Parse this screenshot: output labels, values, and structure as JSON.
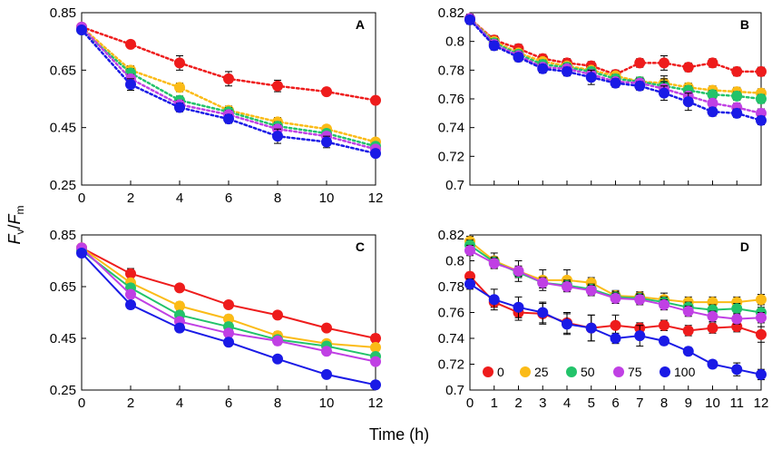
{
  "figure": {
    "ylabel_main": "F",
    "ylabel_sub1": "v",
    "ylabel_slash": "/",
    "ylabel_main2": "F",
    "ylabel_sub2": "m",
    "xlabel": "Time (h)"
  },
  "colors": {
    "0": "#ee1c1c",
    "25": "#fbbb17",
    "50": "#22c36a",
    "75": "#c040e4",
    "100": "#1a1ae6"
  },
  "legend": {
    "placement": "bottom-left of panel D",
    "items": [
      {
        "label": "0",
        "color": "#ee1c1c"
      },
      {
        "label": "25",
        "color": "#fbbb17"
      },
      {
        "label": "50",
        "color": "#22c36a"
      },
      {
        "label": "75",
        "color": "#c040e4"
      },
      {
        "label": "100",
        "color": "#1a1ae6"
      }
    ]
  },
  "chart_data": [
    {
      "panel": "A",
      "type": "line",
      "line_style": "dotted",
      "x": [
        0,
        2,
        4,
        6,
        8,
        10,
        12
      ],
      "xlim": [
        0,
        12
      ],
      "xticks": [
        "0",
        "2",
        "4",
        "6",
        "8",
        "10",
        "12"
      ],
      "ylim": [
        0.25,
        0.85
      ],
      "yticks": [
        "0.85",
        "0.65",
        "0.45",
        "0.25"
      ],
      "ytick_values": [
        0.85,
        0.65,
        0.45,
        0.25
      ],
      "series": [
        {
          "name": "0",
          "values": [
            0.8,
            0.74,
            0.675,
            0.62,
            0.595,
            0.575,
            0.545
          ],
          "err": [
            0.01,
            0.012,
            0.025,
            0.025,
            0.02,
            0.01,
            0.01
          ]
        },
        {
          "name": "25",
          "values": [
            0.8,
            0.65,
            0.59,
            0.51,
            0.47,
            0.445,
            0.4
          ],
          "err": [
            0.01,
            0.015,
            0.015,
            0.015,
            0.015,
            0.012,
            0.01
          ]
        },
        {
          "name": "50",
          "values": [
            0.79,
            0.64,
            0.545,
            0.505,
            0.455,
            0.43,
            0.385
          ],
          "err": [
            0.01,
            0.015,
            0.015,
            0.015,
            0.015,
            0.012,
            0.01
          ]
        },
        {
          "name": "75",
          "values": [
            0.8,
            0.62,
            0.53,
            0.495,
            0.445,
            0.42,
            0.375
          ],
          "err": [
            0.01,
            0.015,
            0.015,
            0.015,
            0.015,
            0.012,
            0.01
          ]
        },
        {
          "name": "100",
          "values": [
            0.79,
            0.6,
            0.52,
            0.48,
            0.42,
            0.4,
            0.36
          ],
          "err": [
            0.01,
            0.02,
            0.015,
            0.015,
            0.025,
            0.02,
            0.012
          ]
        }
      ]
    },
    {
      "panel": "B",
      "type": "line",
      "line_style": "dotted",
      "x": [
        0,
        1,
        2,
        3,
        4,
        5,
        6,
        7,
        8,
        9,
        10,
        11,
        12
      ],
      "xlim": [
        0,
        12
      ],
      "xticks": [],
      "ylim": [
        0.7,
        0.82
      ],
      "yticks": [
        "0.82",
        "0.8",
        "0.78",
        "0.76",
        "0.74",
        "0.72",
        "0.7"
      ],
      "ytick_values": [
        0.82,
        0.8,
        0.78,
        0.76,
        0.74,
        0.72,
        0.7
      ],
      "series": [
        {
          "name": "0",
          "values": [
            0.816,
            0.801,
            0.795,
            0.788,
            0.785,
            0.783,
            0.777,
            0.785,
            0.785,
            0.782,
            0.785,
            0.779,
            0.779
          ],
          "err": [
            0.003,
            0.003,
            0.003,
            0.003,
            0.003,
            0.003,
            0.003,
            0.003,
            0.005,
            0.003,
            0.003,
            0.003,
            0.003
          ]
        },
        {
          "name": "25",
          "values": [
            0.816,
            0.8,
            0.792,
            0.786,
            0.783,
            0.78,
            0.776,
            0.772,
            0.771,
            0.768,
            0.766,
            0.765,
            0.764
          ],
          "err": [
            0.003,
            0.003,
            0.003,
            0.003,
            0.003,
            0.003,
            0.003,
            0.003,
            0.005,
            0.003,
            0.003,
            0.003,
            0.003
          ]
        },
        {
          "name": "50",
          "values": [
            0.816,
            0.799,
            0.791,
            0.784,
            0.782,
            0.779,
            0.774,
            0.772,
            0.769,
            0.766,
            0.763,
            0.762,
            0.76
          ],
          "err": [
            0.003,
            0.003,
            0.003,
            0.003,
            0.003,
            0.003,
            0.003,
            0.003,
            0.005,
            0.003,
            0.003,
            0.003,
            0.003
          ]
        },
        {
          "name": "75",
          "values": [
            0.816,
            0.798,
            0.79,
            0.782,
            0.781,
            0.777,
            0.772,
            0.771,
            0.767,
            0.762,
            0.757,
            0.754,
            0.75
          ],
          "err": [
            0.003,
            0.003,
            0.003,
            0.003,
            0.003,
            0.003,
            0.003,
            0.003,
            0.005,
            0.003,
            0.003,
            0.003,
            0.003
          ]
        },
        {
          "name": "100",
          "values": [
            0.815,
            0.797,
            0.789,
            0.781,
            0.779,
            0.775,
            0.771,
            0.769,
            0.764,
            0.758,
            0.751,
            0.75,
            0.745
          ],
          "err": [
            0.003,
            0.003,
            0.003,
            0.003,
            0.003,
            0.005,
            0.003,
            0.003,
            0.005,
            0.006,
            0.003,
            0.003,
            0.003
          ]
        }
      ]
    },
    {
      "panel": "C",
      "type": "line",
      "line_style": "solid",
      "x": [
        0,
        2,
        4,
        6,
        8,
        10,
        12
      ],
      "xlim": [
        0,
        12
      ],
      "xticks": [
        "0",
        "2",
        "4",
        "6",
        "8",
        "10",
        "12"
      ],
      "ylim": [
        0.25,
        0.85
      ],
      "yticks": [
        "0.85",
        "0.65",
        "0.45",
        "0.25"
      ],
      "ytick_values": [
        0.85,
        0.65,
        0.45,
        0.25
      ],
      "series": [
        {
          "name": "0",
          "values": [
            0.8,
            0.7,
            0.645,
            0.58,
            0.54,
            0.49,
            0.45
          ],
          "err": [
            0.01,
            0.02,
            0.01,
            0.01,
            0.01,
            0.01,
            0.015
          ]
        },
        {
          "name": "25",
          "values": [
            0.8,
            0.665,
            0.575,
            0.525,
            0.46,
            0.43,
            0.415
          ],
          "err": [
            0.01,
            0.015,
            0.015,
            0.015,
            0.015,
            0.012,
            0.01
          ]
        },
        {
          "name": "50",
          "values": [
            0.79,
            0.645,
            0.54,
            0.495,
            0.445,
            0.42,
            0.38
          ],
          "err": [
            0.01,
            0.015,
            0.015,
            0.015,
            0.015,
            0.012,
            0.01
          ]
        },
        {
          "name": "75",
          "values": [
            0.8,
            0.62,
            0.515,
            0.47,
            0.44,
            0.4,
            0.36
          ],
          "err": [
            0.01,
            0.015,
            0.015,
            0.015,
            0.015,
            0.012,
            0.01
          ]
        },
        {
          "name": "100",
          "values": [
            0.78,
            0.58,
            0.49,
            0.435,
            0.37,
            0.31,
            0.27
          ],
          "err": [
            0.01,
            0.015,
            0.015,
            0.015,
            0.01,
            0.01,
            0.01
          ]
        }
      ]
    },
    {
      "panel": "D",
      "type": "line",
      "line_style": "solid",
      "x": [
        0,
        1,
        2,
        3,
        4,
        5,
        6,
        7,
        8,
        9,
        10,
        11,
        12
      ],
      "xlim": [
        0,
        12
      ],
      "xticks": [
        "0",
        "1",
        "2",
        "3",
        "4",
        "5",
        "6",
        "7",
        "8",
        "9",
        "10",
        "11",
        "12"
      ],
      "ylim": [
        0.7,
        0.82
      ],
      "yticks": [
        "0.82",
        "0.8",
        "0.78",
        "0.76",
        "0.74",
        "0.72",
        "0.7"
      ],
      "ytick_values": [
        0.82,
        0.8,
        0.78,
        0.76,
        0.74,
        0.72,
        0.7
      ],
      "series": [
        {
          "name": "0",
          "values": [
            0.788,
            0.768,
            0.76,
            0.759,
            0.752,
            0.748,
            0.75,
            0.748,
            0.75,
            0.746,
            0.748,
            0.749,
            0.743
          ],
          "err": [
            0.003,
            0.004,
            0.006,
            0.008,
            0.008,
            0.01,
            0.008,
            0.004,
            0.004,
            0.004,
            0.004,
            0.004,
            0.006
          ]
        },
        {
          "name": "25",
          "values": [
            0.815,
            0.8,
            0.792,
            0.785,
            0.785,
            0.783,
            0.773,
            0.772,
            0.77,
            0.768,
            0.768,
            0.768,
            0.77
          ],
          "err": [
            0.004,
            0.006,
            0.008,
            0.008,
            0.008,
            0.004,
            0.004,
            0.004,
            0.005,
            0.004,
            0.004,
            0.004,
            0.004
          ]
        },
        {
          "name": "50",
          "values": [
            0.812,
            0.799,
            0.791,
            0.783,
            0.781,
            0.778,
            0.772,
            0.771,
            0.768,
            0.764,
            0.762,
            0.763,
            0.76
          ],
          "err": [
            0.004,
            0.004,
            0.004,
            0.004,
            0.004,
            0.004,
            0.004,
            0.004,
            0.004,
            0.004,
            0.004,
            0.004,
            0.004
          ]
        },
        {
          "name": "75",
          "values": [
            0.808,
            0.798,
            0.792,
            0.783,
            0.78,
            0.777,
            0.771,
            0.77,
            0.766,
            0.761,
            0.757,
            0.755,
            0.756
          ],
          "err": [
            0.004,
            0.004,
            0.004,
            0.004,
            0.004,
            0.004,
            0.004,
            0.004,
            0.004,
            0.004,
            0.004,
            0.004,
            0.004
          ]
        },
        {
          "name": "100",
          "values": [
            0.782,
            0.77,
            0.764,
            0.76,
            0.751,
            0.748,
            0.74,
            0.742,
            0.738,
            0.73,
            0.72,
            0.716,
            0.712
          ],
          "err": [
            0.004,
            0.008,
            0.008,
            0.008,
            0.008,
            0.01,
            0.004,
            0.008,
            0.003,
            0.003,
            0.003,
            0.005,
            0.004
          ]
        }
      ]
    }
  ]
}
